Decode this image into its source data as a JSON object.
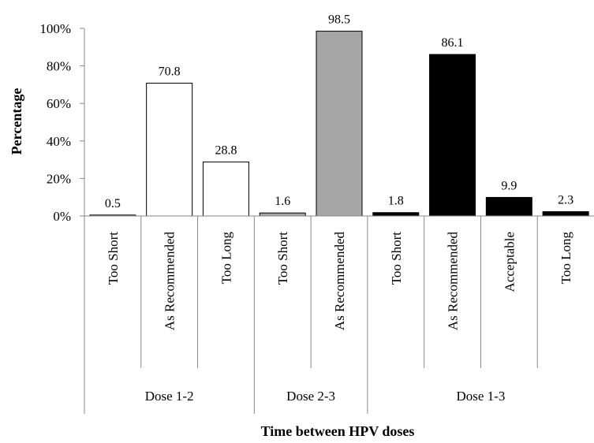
{
  "chart_data": {
    "type": "bar",
    "title": "",
    "xlabel": "Time between HPV doses",
    "ylabel": "Percentage",
    "ylim": [
      0,
      100
    ],
    "yticks": [
      "0%",
      "20%",
      "40%",
      "60%",
      "80%",
      "100%"
    ],
    "grid": false,
    "legend": "none",
    "groups": [
      {
        "name": "Dose 1-2",
        "span": 3
      },
      {
        "name": "Dose 2-3",
        "span": 2
      },
      {
        "name": "Dose 1-3",
        "span": 4
      }
    ],
    "categories": [
      "Too Short",
      "As Recommended",
      "Too Long",
      "Too Short",
      "As Recommended",
      "Too Short",
      "As Recommended",
      "Acceptable",
      "Too Long"
    ],
    "values": [
      0.5,
      70.8,
      28.8,
      1.6,
      98.5,
      1.8,
      86.1,
      9.9,
      2.3
    ],
    "data_labels": [
      "0.5",
      "70.8",
      "28.8",
      "1.6",
      "98.5",
      "1.8",
      "86.1",
      "9.9",
      "2.3"
    ],
    "bar_colors": [
      "#ffffff",
      "#ffffff",
      "#ffffff",
      "#a6a6a6",
      "#a6a6a6",
      "#000000",
      "#000000",
      "#000000",
      "#000000"
    ]
  }
}
